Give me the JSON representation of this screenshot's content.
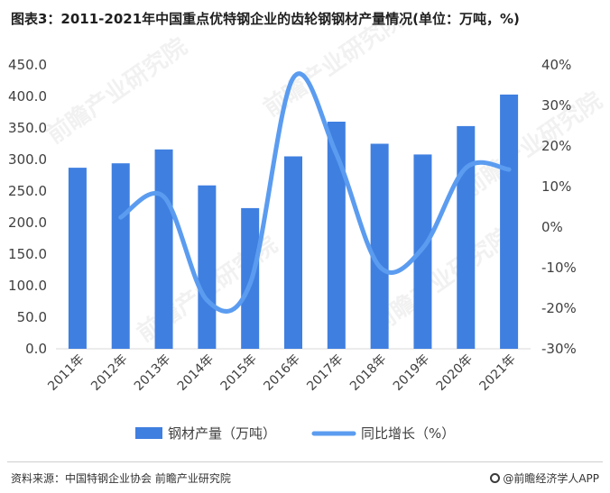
{
  "title": "图表3：2011-2021年中国重点优特钢企业的齿轮钢钢材产量情况(单位：万吨，%)",
  "source": "资料来源：中国特钢企业协会 前瞻产业研究院",
  "brand": "@前瞻经济学人APP",
  "watermark": "前瞻产业研究院",
  "colors": {
    "bar": "#3f7fe0",
    "line": "#5b9cf0",
    "axis": "#d9d9d9",
    "text": "#404040"
  },
  "chart_data": {
    "type": "bar",
    "title": "图表3：2011-2021年中国重点优特钢企业的齿轮钢钢材产量情况(单位：万吨，%)",
    "categories": [
      "2011年",
      "2012年",
      "2013年",
      "2014年",
      "2015年",
      "2016年",
      "2017年",
      "2018年",
      "2019年",
      "2020年",
      "2021年"
    ],
    "series": [
      {
        "name": "钢材产量（万吨）",
        "type": "bar",
        "axis": "left",
        "values": [
          287,
          294,
          316,
          259,
          223,
          305,
          360,
          325,
          308,
          353,
          403
        ]
      },
      {
        "name": "同比增长（%）",
        "type": "line",
        "smooth": true,
        "axis": "right",
        "values": [
          null,
          2.4,
          7.5,
          -18,
          -13.9,
          36.8,
          18,
          -9.7,
          -5.2,
          14.6,
          14.2
        ]
      }
    ],
    "y_left": {
      "ylim": [
        0,
        450
      ],
      "ticks": [
        "0.0",
        "50.0",
        "100.0",
        "150.0",
        "200.0",
        "250.0",
        "300.0",
        "350.0",
        "400.0",
        "450.0"
      ]
    },
    "y_right": {
      "ylim": [
        -30,
        40
      ],
      "ticks": [
        "-30%",
        "-20%",
        "-10%",
        "0%",
        "10%",
        "20%",
        "30%",
        "40%"
      ]
    },
    "grid": false,
    "legend_position": "bottom"
  }
}
